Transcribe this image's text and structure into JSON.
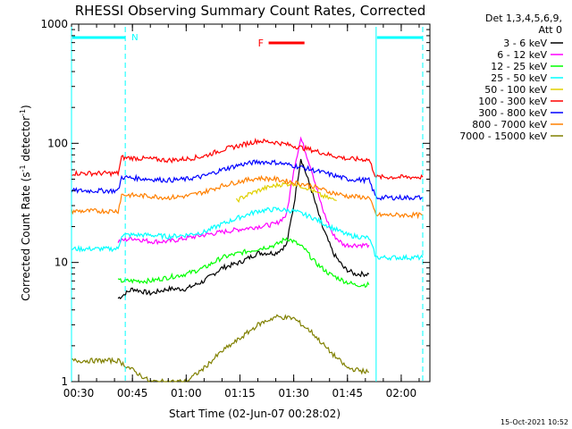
{
  "chart_data": {
    "type": "line",
    "title": "RHESSI Observing Summary Count Rates, Corrected",
    "xlabel": "Start Time (02-Jun-07 00:28:02)",
    "ylabel": "Corrected Count Rate (s",
    "ylabel_sup1": "-1",
    "ylabel_mid": " detector",
    "ylabel_sup2": "-1",
    "ylabel_end": ")",
    "y_scale": "log",
    "ylim": [
      1,
      1000
    ],
    "xlim": [
      "00:28",
      "02:08"
    ],
    "x_ticks": [
      "00:30",
      "00:45",
      "01:00",
      "01:15",
      "01:30",
      "01:45",
      "02:00"
    ],
    "y_ticks": [
      "1",
      "10",
      "100",
      "1000"
    ],
    "legend_header": [
      "Det 1,3,4,5,6,9,",
      "Att 0"
    ],
    "annotations": {
      "night_marker": "N",
      "flare_marker": "F",
      "flare_interval": [
        "01:25",
        "01:35"
      ],
      "night_intervals": [
        [
          "00:28",
          "00:43"
        ],
        [
          "01:53",
          "02:06"
        ]
      ],
      "timestamp": "15-Oct-2021 10:52"
    },
    "series": [
      {
        "name": "3 - 6 keV",
        "color": "#000000",
        "points": [
          [
            "00:41",
            5
          ],
          [
            "00:45",
            6
          ],
          [
            "00:50",
            5.5
          ],
          [
            "00:55",
            6
          ],
          [
            "01:00",
            6
          ],
          [
            "01:05",
            7
          ],
          [
            "01:10",
            9
          ],
          [
            "01:15",
            10
          ],
          [
            "01:20",
            12
          ],
          [
            "01:25",
            12
          ],
          [
            "01:28",
            14
          ],
          [
            "01:30",
            30
          ],
          [
            "01:32",
            75
          ],
          [
            "01:35",
            40
          ],
          [
            "01:38",
            20
          ],
          [
            "01:41",
            12
          ],
          [
            "01:44",
            9
          ],
          [
            "01:47",
            8
          ],
          [
            "01:51",
            8
          ]
        ]
      },
      {
        "name": "6 - 12 keV",
        "color": "#ff00ff",
        "points": [
          [
            "00:41",
            15
          ],
          [
            "00:45",
            16
          ],
          [
            "00:50",
            15
          ],
          [
            "00:55",
            15
          ],
          [
            "01:00",
            16
          ],
          [
            "01:05",
            17
          ],
          [
            "01:10",
            18
          ],
          [
            "01:15",
            19
          ],
          [
            "01:20",
            20
          ],
          [
            "01:25",
            21
          ],
          [
            "01:28",
            25
          ],
          [
            "01:30",
            60
          ],
          [
            "01:32",
            110
          ],
          [
            "01:35",
            60
          ],
          [
            "01:38",
            28
          ],
          [
            "01:41",
            17
          ],
          [
            "01:44",
            14
          ],
          [
            "01:47",
            14
          ],
          [
            "01:51",
            14
          ]
        ]
      },
      {
        "name": "12 - 25 keV",
        "color": "#00ff00",
        "points": [
          [
            "00:41",
            7
          ],
          [
            "00:45",
            7
          ],
          [
            "00:50",
            7
          ],
          [
            "00:55",
            7.5
          ],
          [
            "01:00",
            8
          ],
          [
            "01:05",
            9
          ],
          [
            "01:10",
            11
          ],
          [
            "01:15",
            12
          ],
          [
            "01:20",
            13
          ],
          [
            "01:25",
            14
          ],
          [
            "01:28",
            16
          ],
          [
            "01:30",
            15
          ],
          [
            "01:33",
            13
          ],
          [
            "01:36",
            10
          ],
          [
            "01:40",
            8
          ],
          [
            "01:44",
            7
          ],
          [
            "01:47",
            6.5
          ],
          [
            "01:51",
            6.5
          ]
        ]
      },
      {
        "name": "25 - 50 keV",
        "color": "#00ffff",
        "points": [
          [
            "00:28",
            13
          ],
          [
            "00:41",
            13
          ],
          [
            "00:42",
            17
          ],
          [
            "00:50",
            17
          ],
          [
            "00:55",
            16.5
          ],
          [
            "01:00",
            17
          ],
          [
            "01:05",
            18
          ],
          [
            "01:10",
            21
          ],
          [
            "01:15",
            24
          ],
          [
            "01:20",
            27
          ],
          [
            "01:25",
            28
          ],
          [
            "01:30",
            27
          ],
          [
            "01:35",
            24
          ],
          [
            "01:40",
            20
          ],
          [
            "01:45",
            17
          ],
          [
            "01:51",
            16
          ],
          [
            "01:53",
            11
          ],
          [
            "02:06",
            11
          ]
        ]
      },
      {
        "name": "50 - 100 keV",
        "color": "#e0d000",
        "points": [
          [
            "01:14",
            33
          ],
          [
            "01:18",
            38
          ],
          [
            "01:22",
            42
          ],
          [
            "01:26",
            45
          ],
          [
            "01:30",
            46
          ],
          [
            "01:34",
            42
          ],
          [
            "01:38",
            36
          ],
          [
            "01:42",
            33
          ]
        ]
      },
      {
        "name": "100 - 300 keV",
        "color": "#ff0000",
        "points": [
          [
            "00:28",
            56
          ],
          [
            "00:41",
            56
          ],
          [
            "00:42",
            76
          ],
          [
            "00:50",
            74
          ],
          [
            "00:55",
            72
          ],
          [
            "01:00",
            74
          ],
          [
            "01:05",
            78
          ],
          [
            "01:10",
            88
          ],
          [
            "01:15",
            96
          ],
          [
            "01:20",
            105
          ],
          [
            "01:25",
            102
          ],
          [
            "01:30",
            95
          ],
          [
            "01:35",
            88
          ],
          [
            "01:40",
            80
          ],
          [
            "01:45",
            74
          ],
          [
            "01:51",
            73
          ],
          [
            "01:53",
            52
          ],
          [
            "02:06",
            52
          ]
        ]
      },
      {
        "name": "300 - 800 keV",
        "color": "#0000ff",
        "points": [
          [
            "00:28",
            40
          ],
          [
            "00:41",
            40
          ],
          [
            "00:42",
            52
          ],
          [
            "00:50",
            50
          ],
          [
            "00:55",
            49
          ],
          [
            "01:00",
            50
          ],
          [
            "01:05",
            53
          ],
          [
            "01:10",
            60
          ],
          [
            "01:15",
            66
          ],
          [
            "01:20",
            70
          ],
          [
            "01:25",
            69
          ],
          [
            "01:30",
            65
          ],
          [
            "01:35",
            60
          ],
          [
            "01:40",
            55
          ],
          [
            "01:45",
            50
          ],
          [
            "01:51",
            49
          ],
          [
            "01:53",
            35
          ],
          [
            "02:06",
            35
          ]
        ]
      },
      {
        "name": "800 - 7000 keV",
        "color": "#ff8000",
        "points": [
          [
            "00:28",
            27
          ],
          [
            "00:41",
            27
          ],
          [
            "00:42",
            37
          ],
          [
            "00:50",
            36
          ],
          [
            "00:55",
            35
          ],
          [
            "01:00",
            36
          ],
          [
            "01:05",
            39
          ],
          [
            "01:10",
            44
          ],
          [
            "01:15",
            48
          ],
          [
            "01:20",
            51
          ],
          [
            "01:25",
            50
          ],
          [
            "01:30",
            47
          ],
          [
            "01:35",
            44
          ],
          [
            "01:40",
            39
          ],
          [
            "01:45",
            36
          ],
          [
            "01:51",
            35
          ],
          [
            "01:53",
            25
          ],
          [
            "02:06",
            25
          ]
        ]
      },
      {
        "name": "7000 - 15000 keV",
        "color": "#808000",
        "points": [
          [
            "00:28",
            1.5
          ],
          [
            "00:41",
            1.5
          ],
          [
            "00:50",
            1.0
          ],
          [
            "01:00",
            1.0
          ],
          [
            "01:05",
            1.3
          ],
          [
            "01:10",
            1.8
          ],
          [
            "01:15",
            2.3
          ],
          [
            "01:20",
            3.0
          ],
          [
            "01:25",
            3.5
          ],
          [
            "01:30",
            3.4
          ],
          [
            "01:35",
            2.6
          ],
          [
            "01:40",
            1.8
          ],
          [
            "01:45",
            1.3
          ],
          [
            "01:51",
            1.2
          ]
        ]
      }
    ]
  }
}
